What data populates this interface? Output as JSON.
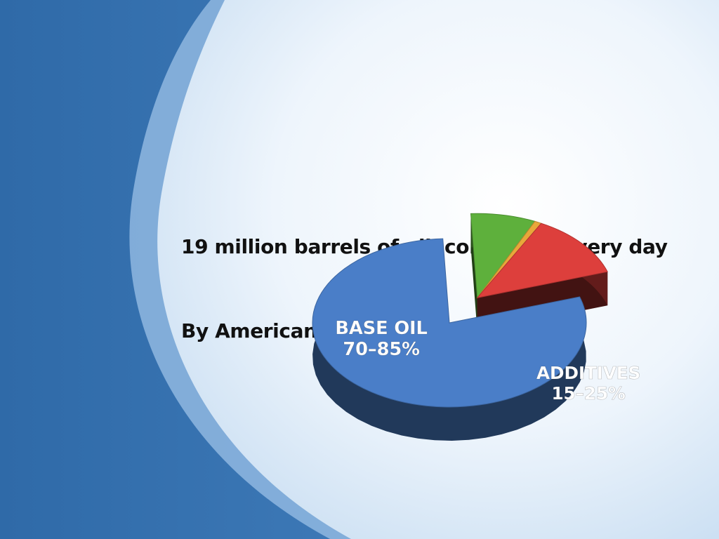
{
  "slide": {
    "headline_line1": "19 million barrels of oil  consumed every day",
    "headline_line2": "By Americans"
  },
  "colors": {
    "base_oil": "#4a7ec8",
    "additive_green": "#5eb03c",
    "additive_orange": "#e8a83a",
    "additive_red": "#dd3f3c"
  },
  "chart_data": {
    "type": "pie",
    "title": "",
    "slices": [
      {
        "key": "base_oil",
        "label_line1": "BASE OIL",
        "label_line2": "70–85%",
        "value": 77.5,
        "exploded": false
      },
      {
        "key": "additives_green",
        "label_line1": "",
        "label_line2": "",
        "value": 7.5,
        "exploded": true
      },
      {
        "key": "additives_orange",
        "label_line1": "",
        "label_line2": "",
        "value": 0.8,
        "exploded": true
      },
      {
        "key": "additives_red",
        "label_line1": "",
        "label_line2": "",
        "value": 12.0,
        "exploded": true
      }
    ],
    "group_labels": [
      {
        "key": "additives",
        "label_line1": "ADDITIVES",
        "label_line2": "15–25%"
      }
    ]
  }
}
